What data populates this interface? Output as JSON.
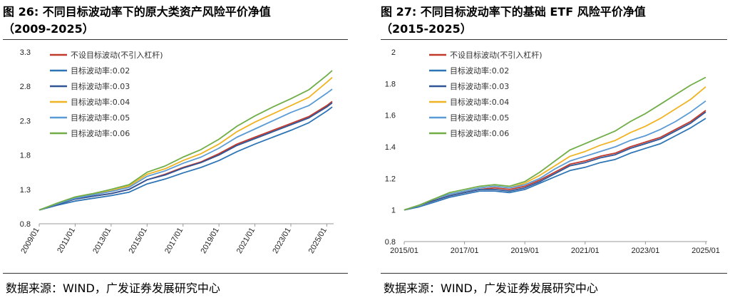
{
  "figures": [
    {
      "title_line1": "图 26:  不同目标波动率下的原大类资产风险平价净值",
      "title_line2": "（2009-2025）",
      "source": "数据来源：WIND，广发证券发展研究中心"
    },
    {
      "title_line1": "图 27:  不同目标波动率下的基础 ETF 风险平价净值",
      "title_line2": "（2015-2025）",
      "source": "数据来源：WIND，广发证券发展研究中心"
    }
  ],
  "chart_data": [
    {
      "type": "line",
      "title": "",
      "xlabel": "",
      "ylabel": "",
      "ylim": [
        0.8,
        3.3
      ],
      "yticks": [
        "3.3",
        "2.8",
        "2.3",
        "1.8",
        "1.3",
        "0.8"
      ],
      "xticks": [
        "2009/01",
        "2011/01",
        "2013/01",
        "2015/01",
        "2017/01",
        "2019/01",
        "2021/01",
        "2023/01",
        "2025/01"
      ],
      "x": [
        2009.0,
        2010.0,
        2011.0,
        2012.0,
        2013.0,
        2014.0,
        2015.0,
        2016.0,
        2017.0,
        2018.0,
        2019.0,
        2020.0,
        2021.0,
        2022.0,
        2023.0,
        2024.0,
        2025.0,
        2025.3
      ],
      "legend_position": "top-left",
      "grid": false,
      "series": [
        {
          "name": "不设目标波动(不引入杠杆)",
          "color": "#c0392b",
          "values": [
            1.0,
            1.08,
            1.16,
            1.2,
            1.24,
            1.3,
            1.44,
            1.52,
            1.62,
            1.7,
            1.82,
            1.96,
            2.06,
            2.16,
            2.26,
            2.36,
            2.52,
            2.58
          ]
        },
        {
          "name": "目标波动率:0.02",
          "color": "#2e75b6",
          "values": [
            1.0,
            1.07,
            1.13,
            1.17,
            1.21,
            1.26,
            1.38,
            1.45,
            1.54,
            1.62,
            1.72,
            1.85,
            1.96,
            2.06,
            2.16,
            2.27,
            2.44,
            2.5
          ]
        },
        {
          "name": "目标波动率:0.03",
          "color": "#2f5597",
          "values": [
            1.0,
            1.08,
            1.16,
            1.2,
            1.24,
            1.3,
            1.44,
            1.51,
            1.61,
            1.69,
            1.8,
            1.94,
            2.04,
            2.14,
            2.24,
            2.34,
            2.5,
            2.56
          ]
        },
        {
          "name": "目标波动率:0.04",
          "color": "#f0b323",
          "values": [
            1.0,
            1.09,
            1.18,
            1.23,
            1.28,
            1.35,
            1.52,
            1.6,
            1.72,
            1.82,
            1.96,
            2.14,
            2.28,
            2.4,
            2.52,
            2.64,
            2.86,
            2.93
          ]
        },
        {
          "name": "目标波动率:0.05",
          "color": "#5b9bd5",
          "values": [
            1.0,
            1.09,
            1.17,
            1.22,
            1.27,
            1.33,
            1.49,
            1.57,
            1.68,
            1.77,
            1.9,
            2.06,
            2.18,
            2.3,
            2.42,
            2.52,
            2.7,
            2.76
          ]
        },
        {
          "name": "目标波动率:0.06",
          "color": "#70ad47",
          "values": [
            1.0,
            1.1,
            1.19,
            1.24,
            1.3,
            1.37,
            1.55,
            1.64,
            1.77,
            1.88,
            2.03,
            2.22,
            2.37,
            2.5,
            2.62,
            2.75,
            2.96,
            3.03
          ]
        }
      ]
    },
    {
      "type": "line",
      "title": "",
      "xlabel": "",
      "ylabel": "",
      "ylim": [
        0.8,
        2.0
      ],
      "yticks": [
        "2",
        "1.8",
        "1.6",
        "1.4",
        "1.2",
        "1",
        "0.8"
      ],
      "xticks": [
        "2015/01",
        "2017/01",
        "2019/01",
        "2021/01",
        "2023/01",
        "2025/01"
      ],
      "x": [
        2015.0,
        2015.5,
        2016.0,
        2016.5,
        2017.0,
        2017.5,
        2018.0,
        2018.5,
        2019.0,
        2019.5,
        2020.0,
        2020.5,
        2021.0,
        2021.5,
        2022.0,
        2022.5,
        2023.0,
        2023.5,
        2024.0,
        2024.5,
        2025.0
      ],
      "legend_position": "top-left",
      "grid": false,
      "series": [
        {
          "name": "不设目标波动(不引入杠杆)",
          "color": "#c0392b",
          "values": [
            1.0,
            1.03,
            1.06,
            1.09,
            1.11,
            1.13,
            1.14,
            1.13,
            1.15,
            1.19,
            1.24,
            1.29,
            1.31,
            1.34,
            1.36,
            1.4,
            1.43,
            1.46,
            1.51,
            1.56,
            1.63
          ]
        },
        {
          "name": "目标波动率:0.02",
          "color": "#2e75b6",
          "values": [
            1.0,
            1.02,
            1.05,
            1.08,
            1.1,
            1.12,
            1.12,
            1.11,
            1.13,
            1.17,
            1.21,
            1.25,
            1.27,
            1.3,
            1.32,
            1.36,
            1.39,
            1.42,
            1.47,
            1.52,
            1.58
          ]
        },
        {
          "name": "目标波动率:0.03",
          "color": "#2f5597",
          "values": [
            1.0,
            1.03,
            1.06,
            1.09,
            1.11,
            1.13,
            1.13,
            1.12,
            1.14,
            1.18,
            1.23,
            1.28,
            1.3,
            1.33,
            1.35,
            1.39,
            1.42,
            1.45,
            1.5,
            1.55,
            1.62
          ]
        },
        {
          "name": "目标波动率:0.04",
          "color": "#f0b323",
          "values": [
            1.0,
            1.03,
            1.07,
            1.1,
            1.12,
            1.14,
            1.15,
            1.14,
            1.17,
            1.22,
            1.28,
            1.34,
            1.37,
            1.41,
            1.44,
            1.49,
            1.53,
            1.58,
            1.64,
            1.7,
            1.78
          ]
        },
        {
          "name": "目标波动率:0.05",
          "color": "#5b9bd5",
          "values": [
            1.0,
            1.03,
            1.07,
            1.1,
            1.12,
            1.14,
            1.15,
            1.14,
            1.16,
            1.2,
            1.26,
            1.31,
            1.34,
            1.37,
            1.4,
            1.44,
            1.47,
            1.51,
            1.56,
            1.62,
            1.69
          ]
        },
        {
          "name": "目标波动率:0.06",
          "color": "#70ad47",
          "values": [
            1.0,
            1.03,
            1.07,
            1.11,
            1.13,
            1.15,
            1.16,
            1.15,
            1.18,
            1.24,
            1.31,
            1.38,
            1.42,
            1.46,
            1.5,
            1.56,
            1.61,
            1.67,
            1.73,
            1.79,
            1.84
          ]
        }
      ]
    }
  ]
}
